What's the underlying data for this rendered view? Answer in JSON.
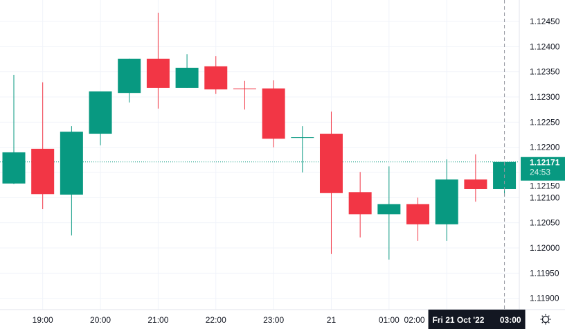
{
  "chart_data": {
    "type": "candlestick",
    "title": "",
    "interval_minutes": 30,
    "candles": [
      {
        "time": "18:30",
        "open": 1.12128,
        "high": 1.12344,
        "low": 1.12127,
        "close": 1.1219
      },
      {
        "time": "19:00",
        "open": 1.12197,
        "high": 1.12329,
        "low": 1.12077,
        "close": 1.12107
      },
      {
        "time": "19:30",
        "open": 1.12106,
        "high": 1.12242,
        "low": 1.12025,
        "close": 1.12231
      },
      {
        "time": "20:00",
        "open": 1.12227,
        "high": 1.12311,
        "low": 1.12204,
        "close": 1.12311
      },
      {
        "time": "20:30",
        "open": 1.12308,
        "high": 1.12376,
        "low": 1.12289,
        "close": 1.12376
      },
      {
        "time": "21:00",
        "open": 1.12376,
        "high": 1.12467,
        "low": 1.12277,
        "close": 1.12318
      },
      {
        "time": "21:30",
        "open": 1.12318,
        "high": 1.12385,
        "low": 1.12318,
        "close": 1.12358
      },
      {
        "time": "22:00",
        "open": 1.12361,
        "high": 1.12381,
        "low": 1.12306,
        "close": 1.12315
      },
      {
        "time": "22:30",
        "open": 1.12317,
        "high": 1.12332,
        "low": 1.12275,
        "close": 1.12316
      },
      {
        "time": "23:00",
        "open": 1.12317,
        "high": 1.12333,
        "low": 1.122,
        "close": 1.12217
      },
      {
        "time": "23:30",
        "open": 1.12219,
        "high": 1.12242,
        "low": 1.1215,
        "close": 1.1222
      },
      {
        "time": "00:00",
        "open": 1.12227,
        "high": 1.12271,
        "low": 1.11988,
        "close": 1.12109
      },
      {
        "time": "00:30",
        "open": 1.12111,
        "high": 1.12151,
        "low": 1.12021,
        "close": 1.12067
      },
      {
        "time": "01:00",
        "open": 1.12067,
        "high": 1.12162,
        "low": 1.11977,
        "close": 1.12087
      },
      {
        "time": "01:30",
        "open": 1.12087,
        "high": 1.121,
        "low": 1.12014,
        "close": 1.12047
      },
      {
        "time": "02:00",
        "open": 1.12047,
        "high": 1.12176,
        "low": 1.12014,
        "close": 1.12136
      },
      {
        "time": "02:30",
        "open": 1.12136,
        "high": 1.12186,
        "low": 1.12092,
        "close": 1.12117
      },
      {
        "time": "03:00",
        "open": 1.12117,
        "high": 1.12171,
        "low": 1.12102,
        "close": 1.12171
      }
    ],
    "ylim": [
      1.1188,
      1.12475
    ],
    "y_ticks": [
      "1.12450",
      "1.12400",
      "1.12350",
      "1.12300",
      "1.12250",
      "1.12200",
      "1.12150",
      "1.12100",
      "1.12050",
      "1.12000",
      "1.11950",
      "1.11900"
    ],
    "x_ticks": [
      {
        "label": "19:00",
        "index": 1
      },
      {
        "label": "20:00",
        "index": 3
      },
      {
        "label": "21:00",
        "index": 5
      },
      {
        "label": "22:00",
        "index": 7
      },
      {
        "label": "23:00",
        "index": 9
      },
      {
        "label": "21",
        "index": 11
      },
      {
        "label": "01:00",
        "index": 13
      },
      {
        "label": "02:00",
        "index": 15
      }
    ],
    "grid": true,
    "last_price": {
      "value": "1.12171",
      "countdown": "24:53"
    },
    "crosshair": {
      "index": 17,
      "label": "Fri 21 Oct '22",
      "time": "03:00"
    },
    "colors": {
      "up": "#089981",
      "down": "#f23645",
      "grid": "#f0f3fa",
      "text": "#131722",
      "crosshair_label": "#131722"
    }
  },
  "settings_icon": "gear-icon"
}
